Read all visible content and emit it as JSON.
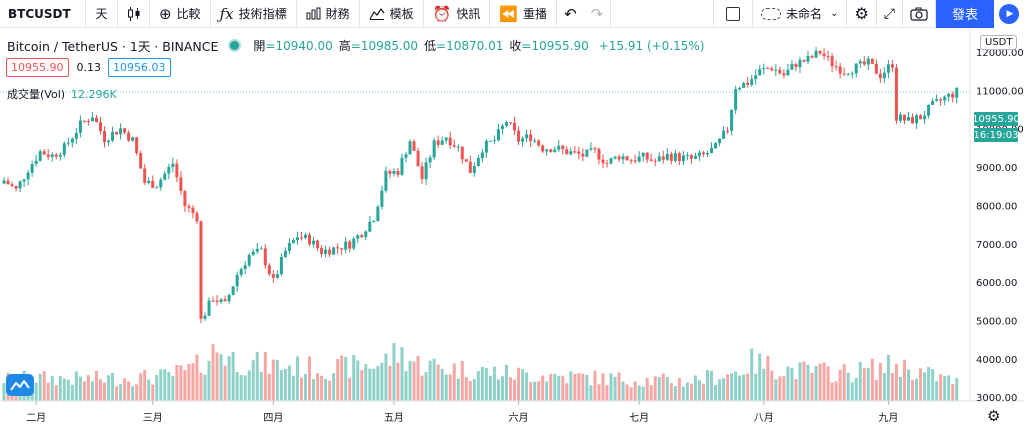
{
  "toolbar": {
    "symbol": "BTCUSDT",
    "interval": "天",
    "compare_label": "比較",
    "indicators_label": "技術指標",
    "financials_label": "財務",
    "templates_label": "模板",
    "alert_label": "快訊",
    "replay_label": "重播",
    "layout_name": "未命名",
    "publish_label": "發表"
  },
  "legend": {
    "pair_title": "Bitcoin / TetherUS · 1天 · BINANCE",
    "open_label": "開",
    "open_value": "=10940.00",
    "high_label": "高",
    "high_value": "=10985.00",
    "low_label": "低",
    "low_value": "=10870.01",
    "close_label": "收",
    "close_value": "=10955.90",
    "change": "+15.91 (+0.15%)",
    "bid": "10955.90",
    "spread": "0.13",
    "ask": "10956.03",
    "vol_label": "成交量(Vol)",
    "vol_value": "12.296K"
  },
  "axis": {
    "currency_badge": "USDT",
    "last_price": "10955.90",
    "countdown": "16:19:03"
  },
  "colors": {
    "up": "#26a69a",
    "down": "#ef5350",
    "up_volume": "#8fd1c9",
    "down_volume": "#f6a7a4",
    "accent": "#2962ff"
  },
  "icons": {
    "candle": "candlestick-icon",
    "compare": "plus-circle-icon",
    "indicators": "fx-icon",
    "financials": "bar-chart-icon",
    "templates": "template-icon",
    "alert": "alarm-clock-icon",
    "replay": "rewind-icon",
    "undo": "undo-icon",
    "redo": "redo-icon",
    "settings": "gear-icon",
    "fullscreen": "fullscreen-icon",
    "snapshot": "camera-icon",
    "play": "play-icon",
    "logo": "tradingview-logo"
  },
  "chart_data": {
    "type": "candlestick",
    "title": "Bitcoin / TetherUS · 1天 · BINANCE",
    "ylim": [
      2900,
      12600
    ],
    "y_ticks": [
      {
        "value": 12000,
        "label": "12000.00"
      },
      {
        "value": 11000,
        "label": "11000.00"
      },
      {
        "value": 10000,
        "label": "10000.00"
      },
      {
        "value": 9000,
        "label": "9000.00"
      },
      {
        "value": 8000,
        "label": "8000.00"
      },
      {
        "value": 7000,
        "label": "7000.00"
      },
      {
        "value": 6000,
        "label": "6000.00"
      },
      {
        "value": 5000,
        "label": "5000.00"
      },
      {
        "value": 4000,
        "label": "4000.00"
      },
      {
        "value": 3000,
        "label": "3000.00"
      }
    ],
    "x_ticks": [
      {
        "index": 8,
        "label": "二月"
      },
      {
        "index": 37,
        "label": "三月"
      },
      {
        "index": 67,
        "label": "四月"
      },
      {
        "index": 97,
        "label": "五月"
      },
      {
        "index": 128,
        "label": "六月"
      },
      {
        "index": 158,
        "label": "七月"
      },
      {
        "index": 189,
        "label": "八月"
      },
      {
        "index": 220,
        "label": "九月"
      }
    ],
    "close_path": [
      [
        0,
        8650
      ],
      [
        3,
        8400
      ],
      [
        6,
        8950
      ],
      [
        9,
        9400
      ],
      [
        12,
        9300
      ],
      [
        15,
        9500
      ],
      [
        19,
        10100
      ],
      [
        22,
        10350
      ],
      [
        25,
        9750
      ],
      [
        29,
        10000
      ],
      [
        32,
        9700
      ],
      [
        35,
        8600
      ],
      [
        38,
        8550
      ],
      [
        42,
        9100
      ],
      [
        45,
        8000
      ],
      [
        48,
        7700
      ],
      [
        49,
        5000
      ],
      [
        52,
        5600
      ],
      [
        55,
        5400
      ],
      [
        58,
        6200
      ],
      [
        61,
        6700
      ],
      [
        64,
        6800
      ],
      [
        67,
        6000
      ],
      [
        70,
        6800
      ],
      [
        73,
        7200
      ],
      [
        76,
        7100
      ],
      [
        79,
        6800
      ],
      [
        83,
        6900
      ],
      [
        86,
        7000
      ],
      [
        89,
        7300
      ],
      [
        92,
        7700
      ],
      [
        95,
        8800
      ],
      [
        98,
        8900
      ],
      [
        101,
        9700
      ],
      [
        104,
        8700
      ],
      [
        107,
        9600
      ],
      [
        110,
        9800
      ],
      [
        113,
        9500
      ],
      [
        116,
        8900
      ],
      [
        119,
        9500
      ],
      [
        122,
        9700
      ],
      [
        125,
        10200
      ],
      [
        128,
        9700
      ],
      [
        131,
        9800
      ],
      [
        134,
        9500
      ],
      [
        137,
        9500
      ],
      [
        140,
        9400
      ],
      [
        144,
        9300
      ],
      [
        147,
        9400
      ],
      [
        150,
        9100
      ],
      [
        153,
        9300
      ],
      [
        156,
        9200
      ],
      [
        159,
        9250
      ],
      [
        162,
        9150
      ],
      [
        165,
        9300
      ],
      [
        168,
        9250
      ],
      [
        171,
        9200
      ],
      [
        174,
        9300
      ],
      [
        177,
        9500
      ],
      [
        180,
        10000
      ],
      [
        182,
        11100
      ],
      [
        185,
        11200
      ],
      [
        188,
        11500
      ],
      [
        191,
        11600
      ],
      [
        194,
        11400
      ],
      [
        197,
        11700
      ],
      [
        200,
        11800
      ],
      [
        203,
        12000
      ],
      [
        206,
        11700
      ],
      [
        209,
        11500
      ],
      [
        212,
        11600
      ],
      [
        215,
        11700
      ],
      [
        218,
        11400
      ],
      [
        221,
        11700
      ],
      [
        222,
        10300
      ],
      [
        225,
        10200
      ],
      [
        228,
        10300
      ],
      [
        231,
        10600
      ],
      [
        234,
        10800
      ],
      [
        237,
        10955.9
      ]
    ],
    "volume_path": [
      [
        0,
        500
      ],
      [
        10,
        520
      ],
      [
        20,
        500
      ],
      [
        30,
        520
      ],
      [
        40,
        560
      ],
      [
        46,
        700
      ],
      [
        48,
        780
      ],
      [
        51,
        1000
      ],
      [
        53,
        1200
      ],
      [
        57,
        950
      ],
      [
        62,
        850
      ],
      [
        70,
        800
      ],
      [
        80,
        720
      ],
      [
        94,
        860
      ],
      [
        98,
        1100
      ],
      [
        103,
        850
      ],
      [
        110,
        750
      ],
      [
        125,
        630
      ],
      [
        140,
        560
      ],
      [
        158,
        480
      ],
      [
        170,
        450
      ],
      [
        182,
        650
      ],
      [
        186,
        880
      ],
      [
        196,
        700
      ],
      [
        210,
        640
      ],
      [
        222,
        820
      ],
      [
        230,
        600
      ],
      [
        237,
        440
      ]
    ],
    "volume_max": 1300
  }
}
